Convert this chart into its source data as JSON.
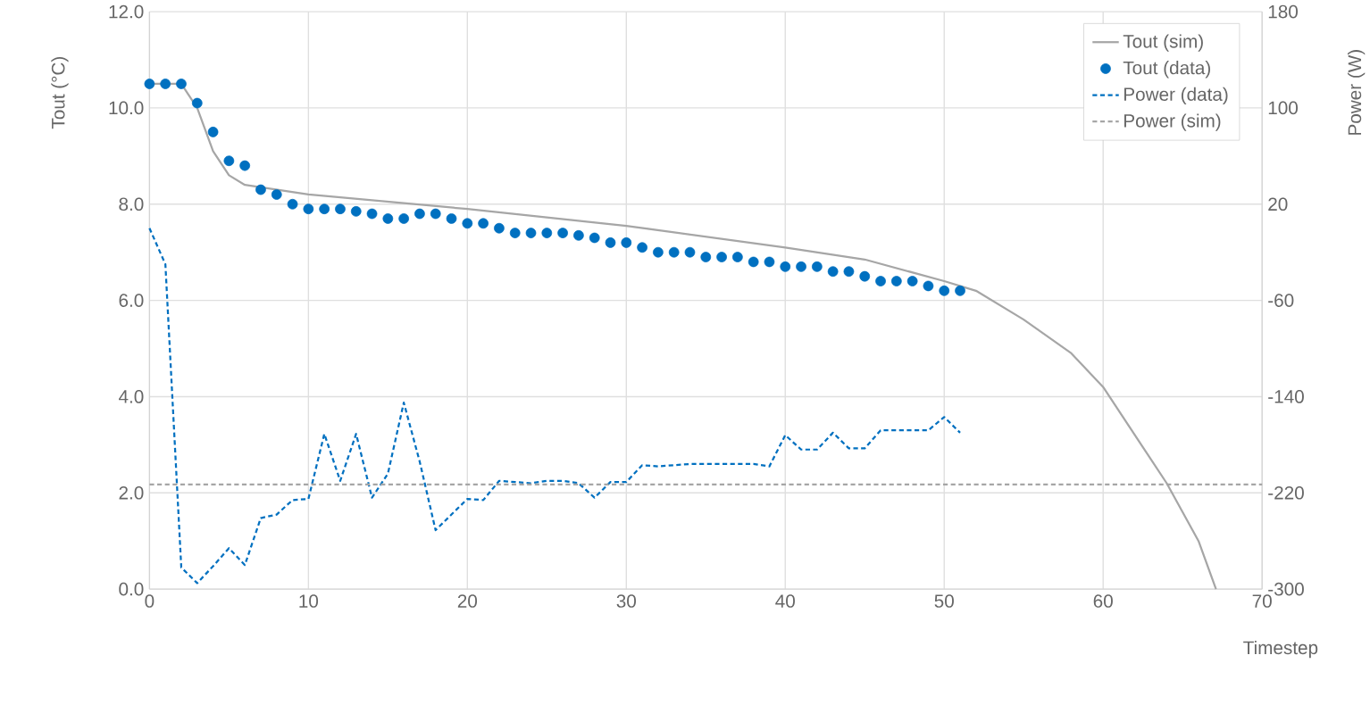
{
  "chart_data": {
    "type": "line",
    "xlabel": "Timestep",
    "ylabel": "Tout (°C)",
    "y2label": "Power (W)",
    "xlim": [
      0,
      70
    ],
    "xticks": [
      0,
      10,
      20,
      30,
      40,
      50,
      60,
      70
    ],
    "ylim": [
      0,
      12
    ],
    "yticks": [
      {
        "value": 0,
        "label": "0.0"
      },
      {
        "value": 2,
        "label": "2.0"
      },
      {
        "value": 4,
        "label": "4.0"
      },
      {
        "value": 6,
        "label": "6.0"
      },
      {
        "value": 8,
        "label": "8.0"
      },
      {
        "value": 10,
        "label": "10.0"
      },
      {
        "value": 12,
        "label": "12.0"
      }
    ],
    "y2lim": [
      -300,
      180
    ],
    "y2ticks": [
      -300,
      -220,
      -140,
      -60,
      20,
      100,
      180
    ],
    "grid": true,
    "legend": "top right",
    "series": [
      {
        "name": "Tout (sim)",
        "color": "#a6a6a6",
        "line_style": "solid",
        "marker": "none",
        "x": [
          0,
          2,
          3,
          4,
          5,
          6,
          8,
          10,
          20,
          30,
          40,
          45,
          50,
          52,
          55,
          58,
          60,
          62,
          64,
          66,
          67.1
        ],
        "values": [
          10.5,
          10.5,
          10.0,
          9.1,
          8.6,
          8.4,
          8.3,
          8.2,
          7.9,
          7.55,
          7.1,
          6.85,
          6.4,
          6.2,
          5.6,
          4.9,
          4.2,
          3.2,
          2.2,
          1.0,
          0.0
        ]
      },
      {
        "name": "Tout (data)",
        "type": "scatter",
        "color": "#0070c0",
        "marker": "circle",
        "x": [
          0,
          1,
          2,
          3,
          4,
          5,
          6,
          7,
          8,
          9,
          10,
          11,
          12,
          13,
          14,
          15,
          16,
          17,
          18,
          19,
          20,
          21,
          22,
          23,
          24,
          25,
          26,
          27,
          28,
          29,
          30,
          31,
          32,
          33,
          34,
          35,
          36,
          37,
          38,
          39,
          40,
          41,
          42,
          43,
          44,
          45,
          46,
          47,
          48,
          49,
          50,
          51
        ],
        "values": [
          10.5,
          10.5,
          10.5,
          10.1,
          9.5,
          8.9,
          8.8,
          8.3,
          8.2,
          8.0,
          7.9,
          7.9,
          7.9,
          7.85,
          7.8,
          7.7,
          7.7,
          7.8,
          7.8,
          7.7,
          7.6,
          7.6,
          7.5,
          7.4,
          7.4,
          7.4,
          7.4,
          7.35,
          7.3,
          7.2,
          7.2,
          7.1,
          7.0,
          7.0,
          7.0,
          6.9,
          6.9,
          6.9,
          6.8,
          6.8,
          6.7,
          6.7,
          6.7,
          6.6,
          6.6,
          6.5,
          6.4,
          6.4,
          6.4,
          6.3,
          6.2,
          6.2
        ]
      },
      {
        "name": "Power (data)",
        "axis": "y2",
        "color": "#0070c0",
        "line_style": "dashed",
        "marker": "none",
        "x": [
          0,
          1,
          2,
          3,
          4,
          5,
          6,
          7,
          8,
          9,
          10,
          11,
          12,
          13,
          14,
          15,
          16,
          17,
          18,
          19,
          20,
          21,
          22,
          23,
          24,
          25,
          26,
          27,
          28,
          29,
          30,
          31,
          32,
          33,
          34,
          35,
          36,
          37,
          38,
          39,
          40,
          41,
          42,
          43,
          44,
          45,
          46,
          47,
          48,
          49,
          50,
          51
        ],
        "values": [
          0,
          -30,
          -282,
          -295,
          -281,
          -266,
          -280,
          -241,
          -238,
          -226,
          -225,
          -171,
          -210,
          -171,
          -224,
          -204,
          -145,
          -194,
          -251,
          -238,
          -225,
          -226,
          -210,
          -211,
          -212,
          -210,
          -210,
          -212,
          -224,
          -211,
          -211,
          -197,
          -198,
          -197,
          -196,
          -196,
          -196,
          -196,
          -196,
          -198,
          -172,
          -184,
          -184,
          -170,
          -183,
          -183,
          -168,
          -168,
          -168,
          -168,
          -157,
          -170
        ]
      },
      {
        "name": "Power (sim)",
        "axis": "y2",
        "color": "#a6a6a6",
        "line_style": "dashed",
        "marker": "none",
        "x": [
          0,
          70
        ],
        "values": [
          -213,
          -213
        ]
      }
    ]
  }
}
